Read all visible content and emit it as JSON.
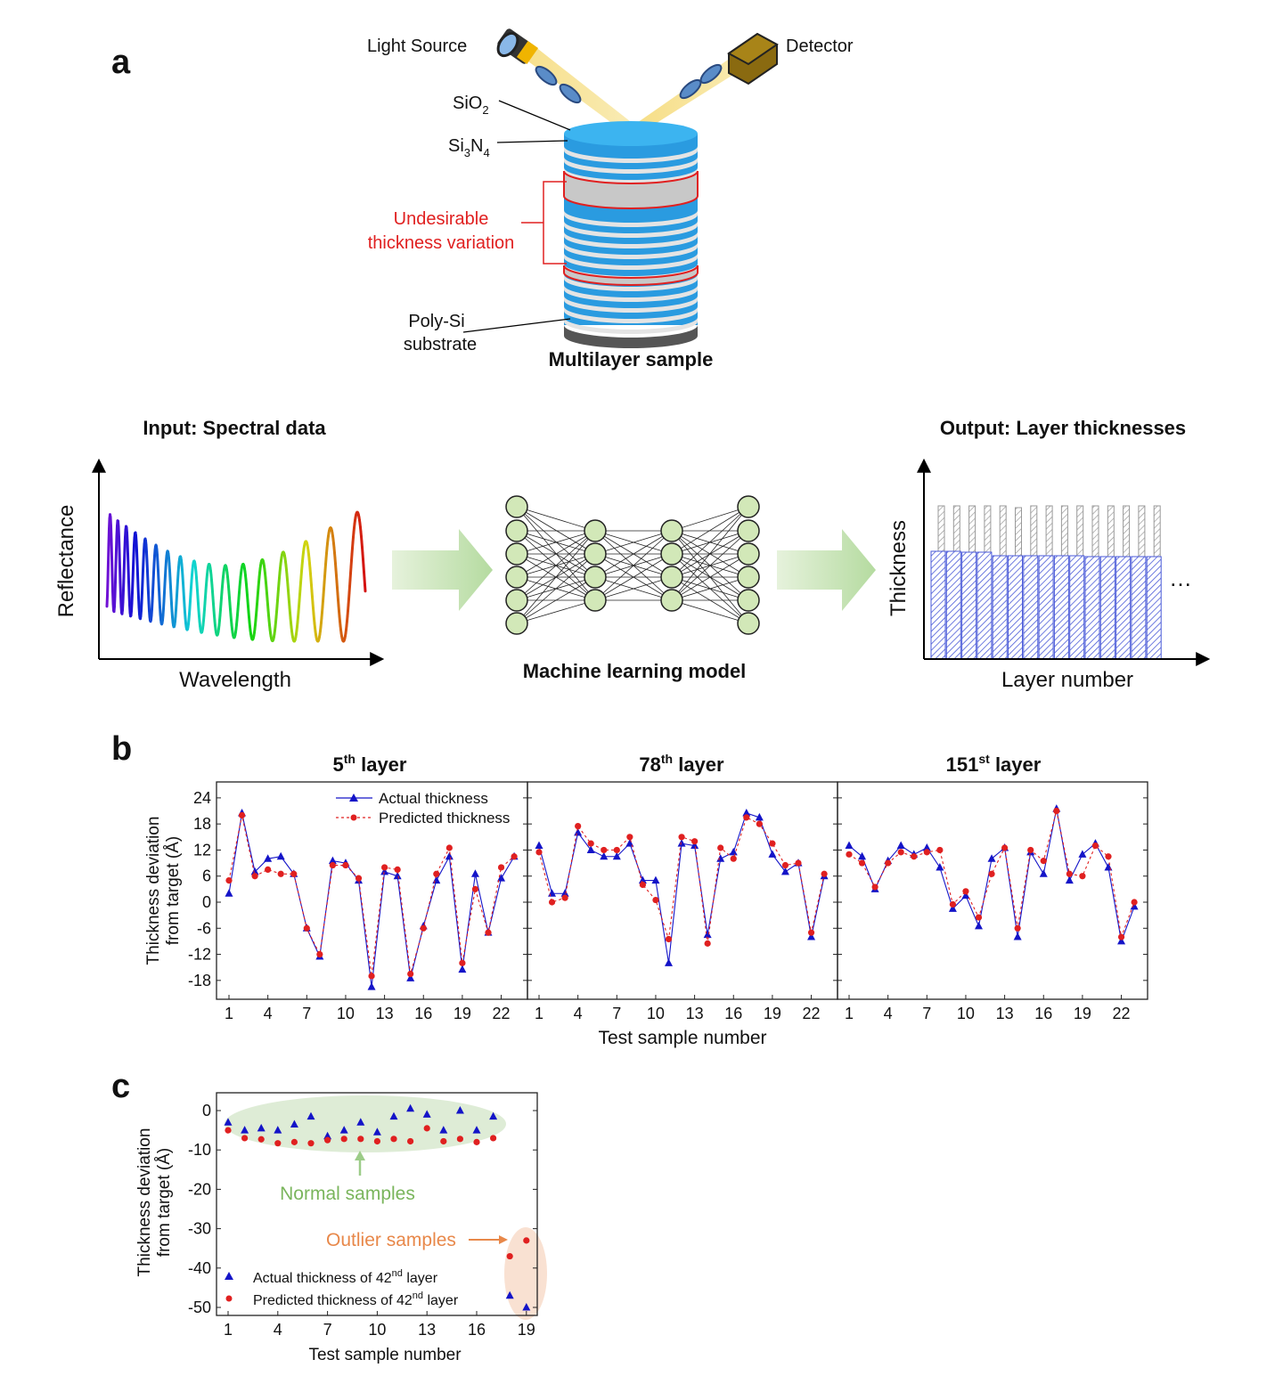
{
  "panel_a": {
    "label": "a",
    "light_source": "Light Source",
    "detector": "Detector",
    "sio2": {
      "base": "SiO",
      "sub": "2"
    },
    "si3n4": {
      "a": "Si",
      "sub1": "3",
      "b": "N",
      "sub2": "4"
    },
    "variation": [
      "Undesirable",
      "thickness variation"
    ],
    "substrate": [
      "Poly-Si",
      "substrate"
    ],
    "sample_title": "Multilayer sample",
    "input_title": "Input: Spectral data",
    "input_ylabel": "Reflectance",
    "input_xlabel": "Wavelength",
    "model_title": "Machine learning model",
    "output_title": "Output: Layer thicknesses",
    "output_ylabel": "Thickness",
    "output_xlabel": "Layer number",
    "ellipsis": "…",
    "colors": {
      "variation": "#e02020",
      "arrow": "#c8e3b8",
      "node": "#cfe6b4",
      "layer_blue": "#2a9be0",
      "layer_gray": "#c8c8c8"
    }
  },
  "panel_b": {
    "label": "b",
    "ylabel": [
      "Thickness deviation",
      "from target (Å)"
    ],
    "xlabel": "Test sample number",
    "titles": [
      {
        "num": "5",
        "sup": "th",
        "rest": " layer"
      },
      {
        "num": "78",
        "sup": "th",
        "rest": " layer"
      },
      {
        "num": "151",
        "sup": "st",
        "rest": " layer"
      }
    ],
    "legend": [
      "Actual thickness",
      "Predicted thickness"
    ]
  },
  "panel_c": {
    "label": "c",
    "ylabel": [
      "Thickness deviation",
      "from target (Å)"
    ],
    "xlabel": "Test sample number",
    "normal": "Normal samples",
    "outlier": "Outlier samples",
    "legend": [
      {
        "a": "Actual thickness of 42",
        "sup": "nd",
        "b": " layer"
      },
      {
        "a": "Predicted thickness of 42",
        "sup": "nd",
        "b": " layer"
      }
    ],
    "colors": {
      "normal": "#7ab55c",
      "outlier": "#e8884a"
    }
  },
  "chart_data": [
    {
      "type": "line",
      "title": "5th layer",
      "xlabel": "Test sample number",
      "ylabel": "Thickness deviation from target (Å)",
      "ylim": [
        -21,
        27
      ],
      "yticks": [
        24,
        18,
        12,
        6,
        0,
        -6,
        -12,
        -18
      ],
      "xticks": [
        1,
        4,
        7,
        10,
        13,
        16,
        19,
        22
      ],
      "x": [
        1,
        2,
        3,
        4,
        5,
        6,
        7,
        8,
        9,
        10,
        11,
        12,
        13,
        14,
        15,
        16,
        17,
        18,
        19,
        20,
        21,
        22,
        23
      ],
      "series": [
        {
          "name": "Actual thickness",
          "color": "#1414c8",
          "values": [
            2,
            20.5,
            7,
            10,
            10.5,
            6.5,
            -6,
            -12.5,
            9.5,
            9,
            5,
            -19.5,
            7,
            6,
            -17.5,
            -5.5,
            5,
            10.5,
            -15.5,
            6.5,
            -7,
            5.5,
            10.5
          ]
        },
        {
          "name": "Predicted thickness",
          "color": "#e02020",
          "values": [
            5,
            20,
            6,
            7.5,
            6.5,
            6.5,
            -6,
            -12,
            8.5,
            8.5,
            5.5,
            -17,
            8,
            7.5,
            -16.5,
            -6,
            6.5,
            12.5,
            -14,
            3,
            -7,
            8,
            10.5
          ]
        }
      ]
    },
    {
      "type": "line",
      "title": "78th layer",
      "ylim": [
        -21,
        27
      ],
      "xticks": [
        1,
        4,
        7,
        10,
        13,
        16,
        19,
        22
      ],
      "x": [
        1,
        2,
        3,
        4,
        5,
        6,
        7,
        8,
        9,
        10,
        11,
        12,
        13,
        14,
        15,
        16,
        17,
        18,
        19,
        20,
        21,
        22,
        23
      ],
      "series": [
        {
          "name": "Actual thickness",
          "color": "#1414c8",
          "values": [
            13,
            2,
            2,
            16,
            12,
            10.5,
            10.5,
            13.5,
            5,
            5,
            -14,
            13.5,
            13,
            -7.5,
            10,
            11.5,
            20.5,
            19.5,
            11,
            7,
            9,
            -8,
            6
          ]
        },
        {
          "name": "Predicted thickness",
          "color": "#e02020",
          "values": [
            11.5,
            0,
            1,
            17.5,
            13.5,
            12,
            12,
            15,
            4,
            0.5,
            -8.5,
            15,
            14,
            -9.5,
            12.5,
            10,
            19.5,
            18,
            13.5,
            8.5,
            9,
            -7,
            6.5
          ]
        }
      ]
    },
    {
      "type": "line",
      "title": "151st layer",
      "ylim": [
        -21,
        27
      ],
      "xticks": [
        1,
        4,
        7,
        10,
        13,
        16,
        19,
        22
      ],
      "x": [
        1,
        2,
        3,
        4,
        5,
        6,
        7,
        8,
        9,
        10,
        11,
        12,
        13,
        14,
        15,
        16,
        17,
        18,
        19,
        20,
        21,
        22,
        23
      ],
      "series": [
        {
          "name": "Actual thickness",
          "color": "#1414c8",
          "values": [
            13,
            10.5,
            3,
            9.5,
            13,
            11,
            12.5,
            8,
            -1.5,
            1.5,
            -5.5,
            10,
            12.5,
            -8,
            11.5,
            6.5,
            21.5,
            5,
            11,
            13.5,
            8,
            -9,
            -1
          ]
        },
        {
          "name": "Predicted thickness",
          "color": "#e02020",
          "values": [
            11,
            9,
            3.5,
            9,
            11.5,
            10.5,
            11.5,
            12,
            -0.5,
            2.5,
            -3.5,
            6.5,
            12.5,
            -6,
            12,
            9.5,
            21,
            6.5,
            6,
            13,
            10.5,
            -8,
            0
          ]
        }
      ]
    },
    {
      "type": "scatter",
      "xlabel": "Test sample number",
      "ylabel": "Thickness deviation from target (Å)",
      "ylim": [
        -54,
        4
      ],
      "yticks": [
        0,
        -10,
        -20,
        -30,
        -40,
        -50
      ],
      "xticks": [
        1,
        4,
        7,
        10,
        13,
        16,
        19
      ],
      "x": [
        1,
        2,
        3,
        4,
        5,
        6,
        7,
        8,
        9,
        10,
        11,
        12,
        13,
        14,
        15,
        16,
        17,
        18,
        19
      ],
      "series": [
        {
          "name": "Actual thickness of 42nd layer",
          "color": "#1414c8",
          "values": [
            -3,
            -5,
            -4.5,
            -5,
            -3.5,
            -1.5,
            -6.5,
            -5,
            -3,
            -5.5,
            -1.5,
            0.5,
            -1,
            -5,
            0,
            -5,
            -1.5,
            -47,
            -50
          ]
        },
        {
          "name": "Predicted thickness of 42nd layer",
          "color": "#e02020",
          "values": [
            -5,
            -7,
            -7.3,
            -8.3,
            -8,
            -8.3,
            -7.5,
            -7.2,
            -7.2,
            -7.8,
            -7.2,
            -7.8,
            -4.5,
            -7.8,
            -7.2,
            -8,
            -7,
            -37,
            -33
          ]
        }
      ]
    }
  ]
}
